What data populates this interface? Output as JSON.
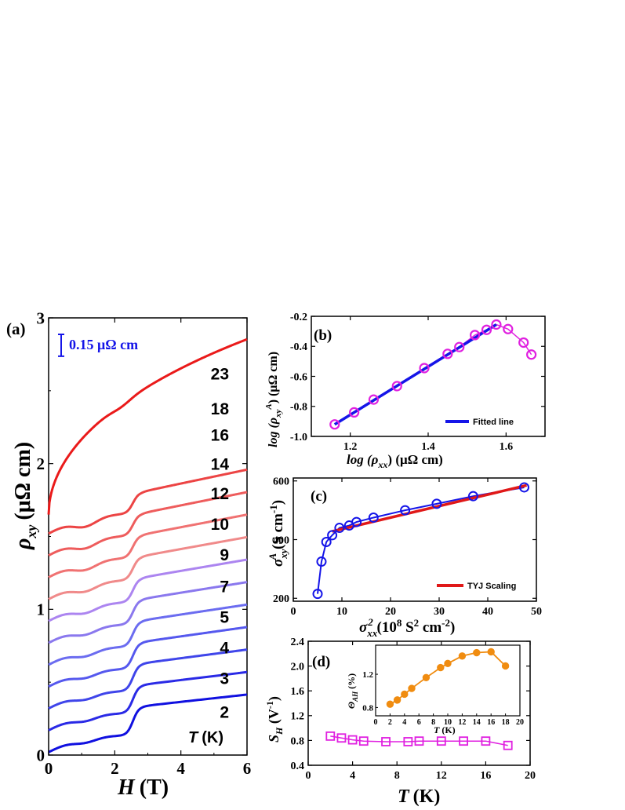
{
  "chart_data": [
    {
      "panel": "a",
      "type": "line",
      "panel_label": "(a)",
      "xlabel": "H (T)",
      "xlabel_main": "H",
      "xlabel_unit": "(T)",
      "ylabel": "ρxy (μΩ cm)",
      "ylabel_main": "ρ",
      "ylabel_sub": "xy",
      "ylabel_unit": "(μΩ cm)",
      "xlim": [
        0,
        6
      ],
      "ylim": [
        0,
        3
      ],
      "xticks": [
        "0",
        "2",
        "4",
        "6"
      ],
      "yticks": [
        "0",
        "1",
        "2",
        "3"
      ],
      "scale_bar_label": "0.15 μΩ cm",
      "scale_bar_value": 0.15,
      "curve_header": "T (K)",
      "curve_header_main": "T",
      "curve_header_unit": "(K)",
      "series": [
        {
          "name": "2",
          "color": "#1010e0",
          "offset": 0.0,
          "label_y": 0.3
        },
        {
          "name": "3",
          "color": "#2a2ae6",
          "offset": 0.15,
          "label_y": 0.53
        },
        {
          "name": "4",
          "color": "#3f45ea",
          "offset": 0.3,
          "label_y": 0.74
        },
        {
          "name": "5",
          "color": "#5558ee",
          "offset": 0.45,
          "label_y": 0.95
        },
        {
          "name": "7",
          "color": "#6b6cf0",
          "offset": 0.6,
          "label_y": 1.16
        },
        {
          "name": "9",
          "color": "#8a78ee",
          "offset": 0.75,
          "label_y": 1.38
        },
        {
          "name": "10",
          "color": "#ac85f0",
          "offset": 0.9,
          "label_y": 1.59
        },
        {
          "name": "12",
          "color": "#f08a8a",
          "offset": 1.05,
          "label_y": 1.8
        },
        {
          "name": "14",
          "color": "#f07272",
          "offset": 1.2,
          "label_y": 2.0
        },
        {
          "name": "16",
          "color": "#ee5c5c",
          "offset": 1.35,
          "label_y": 2.2
        },
        {
          "name": "18",
          "color": "#ec4444",
          "offset": 1.5,
          "label_y": 2.38
        },
        {
          "name": "23",
          "color": "#ea1a1a",
          "offset": 1.65,
          "label_y": 2.62
        }
      ]
    },
    {
      "panel": "b",
      "type": "scatter",
      "panel_label": "(b)",
      "xlabel": "log (ρxx) (μΩ cm)",
      "xlabel_pre": "log (ρ",
      "xlabel_sub": "xx",
      "xlabel_post": ") (μΩ cm)",
      "ylabel": "log (ρxyA) (μΩ cm)",
      "ylabel_pre": "log (ρ",
      "ylabel_sub": "xy",
      "ylabel_sup": "A",
      "ylabel_post": ") (μΩ cm)",
      "xlim": [
        1.1,
        1.7
      ],
      "ylim": [
        -1.0,
        -0.2
      ],
      "xticks": [
        "1.2",
        "1.4",
        "1.6"
      ],
      "yticks": [
        "-1.0",
        "-0.8",
        "-0.6",
        "-0.4",
        "-0.2"
      ],
      "legend": "Fitted line",
      "legend_position": "bottom-right",
      "points_x": [
        1.16,
        1.21,
        1.26,
        1.32,
        1.39,
        1.45,
        1.48,
        1.52,
        1.55,
        1.575,
        1.605,
        1.645,
        1.665
      ],
      "points_y": [
        -0.92,
        -0.84,
        -0.755,
        -0.665,
        -0.545,
        -0.45,
        -0.405,
        -0.325,
        -0.29,
        -0.255,
        -0.285,
        -0.375,
        -0.455
      ],
      "fit_x": [
        1.16,
        1.575
      ],
      "fit_y": [
        -0.92,
        -0.255
      ],
      "colors": {
        "points": "#e020e0",
        "fit": "#1515e8"
      }
    },
    {
      "panel": "c",
      "type": "scatter",
      "panel_label": "(c)",
      "xlabel": "σxx2 (108 S2 cm-2)",
      "xlabel_main": "σ",
      "xlabel_sub": "xx",
      "xlabel_sup": "2",
      "xlabel_unit_a": " (10",
      "xlabel_unit_b": "8",
      "xlabel_unit_c": " S",
      "xlabel_unit_d": "2",
      "xlabel_unit_e": " cm",
      "xlabel_unit_f": "-2",
      "xlabel_unit_g": ")",
      "ylabel": "σxyA (S cm-1)",
      "ylabel_main": "σ",
      "ylabel_sub": "xy",
      "ylabel_sup": "A",
      "ylabel_unit": " (S cm",
      "ylabel_unit_sup": "-1",
      "ylabel_unit_end": ")",
      "xlim": [
        0,
        50
      ],
      "ylim": [
        190,
        610
      ],
      "xticks": [
        "0",
        "10",
        "20",
        "30",
        "40",
        "50"
      ],
      "yticks": [
        "200",
        "400",
        "600"
      ],
      "legend": "TYJ Scaling",
      "legend_position": "bottom-right",
      "points_x": [
        5.0,
        5.8,
        6.8,
        8.0,
        9.5,
        11.5,
        13.0,
        16.5,
        23.0,
        29.5,
        37.0,
        47.5
      ],
      "points_y": [
        215,
        325,
        392,
        415,
        440,
        448,
        460,
        475,
        500,
        522,
        548,
        578
      ],
      "fit_x": [
        8.0,
        48.0
      ],
      "fit_y": [
        428,
        585
      ],
      "colors": {
        "points": "#1515e8",
        "fit": "#e01818"
      }
    },
    {
      "panel": "d",
      "type": "scatter",
      "panel_label": "(d)",
      "xlabel": "T (K)",
      "xlabel_main": "T",
      "xlabel_unit": "(K)",
      "ylabel": "SH (V-1)",
      "ylabel_main": "S",
      "ylabel_sub": "H",
      "ylabel_unit": " (V",
      "ylabel_unit_sup": "-1",
      "ylabel_unit_end": ")",
      "xlim": [
        0,
        20
      ],
      "ylim": [
        0.4,
        2.4
      ],
      "xticks": [
        "0",
        "4",
        "8",
        "12",
        "16",
        "20"
      ],
      "yticks": [
        "0.4",
        "0.8",
        "1.2",
        "1.6",
        "2.0",
        "2.4"
      ],
      "x": [
        2,
        3,
        4,
        5,
        7,
        9,
        10,
        12,
        14,
        16,
        18
      ],
      "y": [
        0.87,
        0.84,
        0.81,
        0.79,
        0.78,
        0.78,
        0.79,
        0.79,
        0.79,
        0.79,
        0.72
      ],
      "colors": {
        "points": "#e020e0"
      },
      "inset": {
        "xlabel": "T (K)",
        "xlabel_main": "T",
        "xlabel_unit": "(K)",
        "ylabel": "ΘAH (%)",
        "ylabel_main": "Θ",
        "ylabel_sub": "AH",
        "ylabel_unit": " (%)",
        "xlim": [
          0,
          20
        ],
        "ylim": [
          0.7,
          1.55
        ],
        "xticks": [
          "0",
          "2",
          "4",
          "6",
          "8",
          "10",
          "12",
          "14",
          "16",
          "18",
          "20"
        ],
        "yticks": [
          "0.8",
          "1.2"
        ],
        "x": [
          2,
          3,
          4,
          5,
          7,
          9,
          10,
          12,
          14,
          16,
          18
        ],
        "y": [
          0.84,
          0.89,
          0.96,
          1.03,
          1.16,
          1.28,
          1.33,
          1.42,
          1.46,
          1.47,
          1.3
        ],
        "colors": {
          "points": "#f08c10"
        }
      }
    }
  ]
}
